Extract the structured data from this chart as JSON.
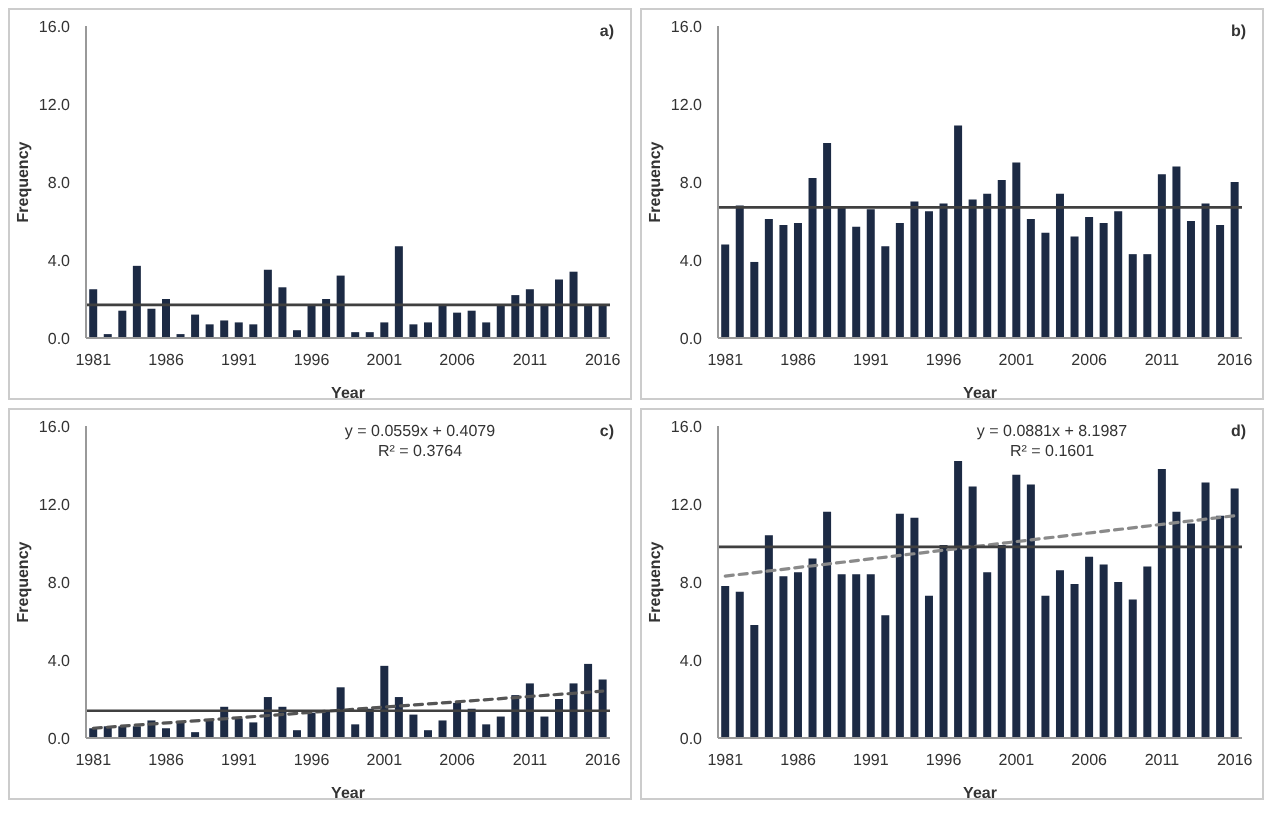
{
  "chart_data": [
    {
      "type": "bar",
      "xlabel": "Year",
      "ylabel": "Frequency",
      "annotations": [
        "a)"
      ],
      "categories": [
        "1981",
        null,
        null,
        null,
        null,
        "1986",
        null,
        null,
        null,
        null,
        "1991",
        null,
        null,
        null,
        null,
        "1996",
        null,
        null,
        null,
        null,
        "2001",
        null,
        null,
        null,
        null,
        "2006",
        null,
        null,
        null,
        null,
        "2011",
        null,
        null,
        null,
        null,
        "2016"
      ],
      "series": [
        {
          "color": "#1c2a44",
          "values": [
            2.5,
            0.2,
            1.4,
            3.7,
            1.5,
            2.0,
            0.2,
            1.2,
            0.7,
            0.9,
            0.8,
            0.7,
            3.5,
            2.6,
            0.4,
            1.7,
            2.0,
            3.2,
            0.3,
            0.3,
            0.8,
            4.7,
            0.7,
            0.8,
            1.7,
            1.3,
            1.4,
            0.8,
            1.7,
            2.2,
            2.5,
            1.7,
            3.0,
            3.4,
            1.7,
            1.7
          ]
        }
      ],
      "ref_lines": [
        {
          "axis": "y",
          "value": 1.7,
          "color": "#404040"
        }
      ],
      "ylim": [
        0,
        16
      ],
      "yticks": [
        {
          "value": 0,
          "label": "0.0"
        },
        {
          "value": 4,
          "label": "4.0"
        },
        {
          "value": 8,
          "label": "8.0"
        },
        {
          "value": 12,
          "label": "12.0"
        },
        {
          "value": 16,
          "label": "16.0"
        }
      ]
    },
    {
      "type": "bar",
      "xlabel": "Year",
      "ylabel": "Frequency",
      "annotations": [
        "b)"
      ],
      "categories": [
        "1981",
        null,
        null,
        null,
        null,
        "1986",
        null,
        null,
        null,
        null,
        "1991",
        null,
        null,
        null,
        null,
        "1996",
        null,
        null,
        null,
        null,
        "2001",
        null,
        null,
        null,
        null,
        "2006",
        null,
        null,
        null,
        null,
        "2011",
        null,
        null,
        null,
        null,
        "2016"
      ],
      "series": [
        {
          "color": "#1c2a44",
          "values": [
            4.8,
            6.8,
            3.9,
            6.1,
            5.8,
            5.9,
            8.2,
            10.0,
            6.7,
            5.7,
            6.6,
            4.7,
            5.9,
            7.0,
            6.5,
            6.9,
            10.9,
            7.1,
            7.4,
            8.1,
            9.0,
            6.1,
            5.4,
            7.4,
            5.2,
            6.2,
            5.9,
            6.5,
            4.3,
            4.3,
            8.4,
            8.8,
            6.0,
            6.9,
            5.8,
            8.0
          ]
        }
      ],
      "ref_lines": [
        {
          "axis": "y",
          "value": 6.7,
          "color": "#404040"
        }
      ],
      "ylim": [
        0,
        16
      ],
      "yticks": [
        {
          "value": 0,
          "label": "0.0"
        },
        {
          "value": 4,
          "label": "4.0"
        },
        {
          "value": 8,
          "label": "8.0"
        },
        {
          "value": 12,
          "label": "12.0"
        },
        {
          "value": 16,
          "label": "16.0"
        }
      ]
    },
    {
      "type": "bar",
      "xlabel": "Year",
      "ylabel": "Frequency",
      "annotations": [
        "c)",
        "y = 0.0559x + 0.4079",
        "R² = 0.3764"
      ],
      "categories": [
        "1981",
        null,
        null,
        null,
        null,
        "1986",
        null,
        null,
        null,
        null,
        "1991",
        null,
        null,
        null,
        null,
        "1996",
        null,
        null,
        null,
        null,
        "2001",
        null,
        null,
        null,
        null,
        "2006",
        null,
        null,
        null,
        null,
        "2011",
        null,
        null,
        null,
        null,
        "2016"
      ],
      "series": [
        {
          "color": "#1c2a44",
          "values": [
            0.5,
            0.6,
            0.6,
            0.6,
            0.9,
            0.5,
            0.8,
            0.3,
            0.9,
            1.6,
            1.0,
            0.8,
            2.1,
            1.6,
            0.4,
            1.3,
            1.4,
            2.6,
            0.7,
            1.5,
            3.7,
            2.1,
            1.2,
            0.4,
            0.9,
            1.8,
            1.5,
            0.7,
            1.1,
            2.2,
            2.8,
            1.1,
            2.0,
            2.8,
            3.8,
            3.0
          ]
        },
        {
          "type": "line",
          "color": "#555555",
          "line_style": "dashed",
          "values": [
            0.5,
            null,
            null,
            null,
            null,
            null,
            null,
            null,
            null,
            null,
            null,
            null,
            null,
            null,
            null,
            null,
            null,
            null,
            null,
            null,
            null,
            null,
            null,
            null,
            null,
            null,
            null,
            null,
            null,
            null,
            null,
            null,
            null,
            null,
            null,
            2.4
          ]
        }
      ],
      "ref_lines": [
        {
          "axis": "y",
          "value": 1.4,
          "color": "#404040"
        }
      ],
      "ylim": [
        0,
        16
      ],
      "yticks": [
        {
          "value": 0,
          "label": "0.0"
        },
        {
          "value": 4,
          "label": "4.0"
        },
        {
          "value": 8,
          "label": "8.0"
        },
        {
          "value": 12,
          "label": "12.0"
        },
        {
          "value": 16,
          "label": "16.0"
        }
      ]
    },
    {
      "type": "bar",
      "xlabel": "Year",
      "ylabel": "Frequency",
      "annotations": [
        "d)",
        "y = 0.0881x + 8.1987",
        "R² = 0.1601"
      ],
      "categories": [
        "1981",
        null,
        null,
        null,
        null,
        "1986",
        null,
        null,
        null,
        null,
        "1991",
        null,
        null,
        null,
        null,
        "1996",
        null,
        null,
        null,
        null,
        "2001",
        null,
        null,
        null,
        null,
        "2006",
        null,
        null,
        null,
        null,
        "2011",
        null,
        null,
        null,
        null,
        "2016"
      ],
      "series": [
        {
          "color": "#1c2a44",
          "values": [
            7.8,
            7.5,
            5.8,
            10.4,
            8.3,
            8.5,
            9.2,
            11.6,
            8.4,
            8.4,
            8.4,
            6.3,
            11.5,
            11.3,
            7.3,
            9.9,
            14.2,
            12.9,
            8.5,
            9.9,
            13.5,
            13.0,
            7.3,
            8.6,
            7.9,
            9.3,
            8.9,
            8.0,
            7.1,
            8.8,
            13.8,
            11.6,
            11.0,
            13.1,
            11.4,
            12.8
          ]
        },
        {
          "type": "line",
          "color": "#8a8a8a",
          "line_style": "dashed",
          "values": [
            8.3,
            null,
            null,
            null,
            null,
            null,
            null,
            null,
            null,
            null,
            null,
            null,
            null,
            null,
            null,
            null,
            null,
            null,
            null,
            null,
            null,
            null,
            null,
            null,
            null,
            null,
            null,
            null,
            null,
            null,
            null,
            null,
            null,
            null,
            null,
            11.4
          ]
        }
      ],
      "ref_lines": [
        {
          "axis": "y",
          "value": 9.8,
          "color": "#404040"
        }
      ],
      "ylim": [
        0,
        16
      ],
      "yticks": [
        {
          "value": 0,
          "label": "0.0"
        },
        {
          "value": 4,
          "label": "4.0"
        },
        {
          "value": 8,
          "label": "8.0"
        },
        {
          "value": 12,
          "label": "12.0"
        },
        {
          "value": 16,
          "label": "16.0"
        }
      ]
    }
  ]
}
